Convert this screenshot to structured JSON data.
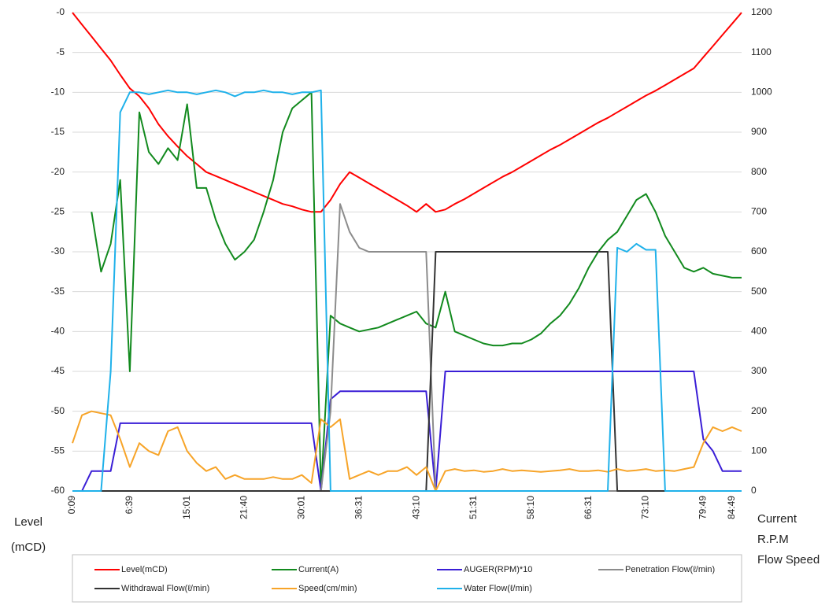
{
  "chart_data": {
    "type": "line",
    "y_label": [
      "Level",
      "(mCD)"
    ],
    "y2_label": [
      "Current",
      "R.P.M",
      "Flow Speed"
    ],
    "ylim": [
      -60,
      0
    ],
    "yticks": [
      {
        "value": 0,
        "label": "-0"
      },
      -5,
      -10,
      -15,
      -20,
      -25,
      -30,
      -35,
      -40,
      -45,
      -50,
      -55,
      -60
    ],
    "y2lim": [
      0,
      1200
    ],
    "y2ticks": [
      0,
      100,
      200,
      300,
      400,
      500,
      600,
      700,
      800,
      900,
      1000,
      1100,
      1200
    ],
    "grid": true,
    "legend": "bottom",
    "categories": [
      "0:09",
      null,
      null,
      null,
      null,
      null,
      "6:39",
      null,
      null,
      null,
      null,
      null,
      "15:01",
      null,
      null,
      null,
      null,
      null,
      "21:40",
      null,
      null,
      null,
      null,
      null,
      "30:01",
      null,
      null,
      null,
      null,
      null,
      "36:31",
      null,
      null,
      null,
      null,
      null,
      "43:10",
      null,
      null,
      null,
      null,
      null,
      "51:31",
      null,
      null,
      null,
      null,
      null,
      "58:10",
      null,
      null,
      null,
      null,
      null,
      "66:31",
      null,
      null,
      null,
      null,
      null,
      "73:10",
      null,
      null,
      null,
      null,
      null,
      "79:49",
      null,
      null,
      "84:49",
      null
    ],
    "series": [
      {
        "name": "Level(mCD)",
        "color": "#ff0000",
        "axis": "y",
        "values": [
          0,
          -1.5,
          -3,
          -4.5,
          -6,
          -7.8,
          -9.5,
          -10.5,
          -12,
          -14,
          -15.5,
          -16.8,
          -18,
          -19,
          -20,
          -20.5,
          -21,
          -21.5,
          -22,
          -22.5,
          -23,
          -23.5,
          -24,
          -24.3,
          -24.7,
          -25,
          -25,
          -23.5,
          -21.5,
          -20,
          -20.7,
          -21.4,
          -22.1,
          -22.8,
          -23.5,
          -24.2,
          -25,
          -24,
          -25,
          -24.7,
          -24,
          -23.4,
          -22.7,
          -22,
          -21.3,
          -20.6,
          -20,
          -19.3,
          -18.6,
          -17.9,
          -17.2,
          -16.6,
          -15.9,
          -15.2,
          -14.5,
          -13.8,
          -13.2,
          -12.5,
          -11.8,
          -11.1,
          -10.4,
          -9.8,
          -9.1,
          -8.4,
          -7.7,
          -7,
          -5.6,
          -4.2,
          -2.8,
          -1.4,
          0
        ]
      },
      {
        "name": "Current(A)",
        "color": "#128a1e",
        "axis": "y2",
        "values": [
          null,
          null,
          700,
          550,
          620,
          780,
          300,
          950,
          850,
          820,
          860,
          830,
          970,
          760,
          760,
          680,
          620,
          580,
          600,
          630,
          700,
          780,
          900,
          960,
          980,
          1000,
          0,
          440,
          420,
          410,
          400,
          405,
          410,
          420,
          430,
          440,
          450,
          420,
          410,
          500,
          400,
          390,
          380,
          370,
          365,
          365,
          370,
          370,
          380,
          395,
          420,
          440,
          470,
          510,
          560,
          600,
          630,
          650,
          690,
          730,
          745,
          700,
          640,
          600,
          560,
          550,
          560,
          545,
          540,
          535,
          535
        ]
      },
      {
        "name": "AUGER(RPM)*10",
        "color": "#3a1ed6",
        "axis": "y2",
        "values": [
          0,
          0,
          50,
          50,
          50,
          170,
          170,
          170,
          170,
          170,
          170,
          170,
          170,
          170,
          170,
          170,
          170,
          170,
          170,
          170,
          170,
          170,
          170,
          170,
          170,
          170,
          0,
          230,
          250,
          250,
          250,
          250,
          250,
          250,
          250,
          250,
          250,
          250,
          0,
          300,
          300,
          300,
          300,
          300,
          300,
          300,
          300,
          300,
          300,
          300,
          300,
          300,
          300,
          300,
          300,
          300,
          300,
          300,
          300,
          300,
          300,
          300,
          300,
          300,
          300,
          300,
          130,
          100,
          50,
          50,
          50
        ]
      },
      {
        "name": "Penetration Flow(ℓ/min)",
        "color": "#8c8c8c",
        "axis": "y2",
        "values": [
          0,
          0,
          0,
          0,
          0,
          0,
          0,
          0,
          0,
          0,
          0,
          0,
          0,
          0,
          0,
          0,
          0,
          0,
          0,
          0,
          0,
          0,
          0,
          0,
          0,
          0,
          0,
          200,
          720,
          650,
          610,
          600,
          600,
          600,
          600,
          600,
          600,
          600,
          0,
          0,
          0,
          0,
          0,
          0,
          0,
          0,
          0,
          0,
          0,
          0,
          0,
          0,
          0,
          0,
          0,
          0,
          0,
          0,
          0,
          0,
          0,
          0,
          0,
          0,
          0,
          0,
          0,
          0,
          0,
          0,
          0
        ]
      },
      {
        "name": "Withdrawal Flow(ℓ/min)",
        "color": "#333333",
        "axis": "y2",
        "values": [
          0,
          0,
          0,
          0,
          0,
          0,
          0,
          0,
          0,
          0,
          0,
          0,
          0,
          0,
          0,
          0,
          0,
          0,
          0,
          0,
          0,
          0,
          0,
          0,
          0,
          0,
          0,
          0,
          0,
          0,
          0,
          0,
          0,
          0,
          0,
          0,
          0,
          0,
          600,
          600,
          600,
          600,
          600,
          600,
          600,
          600,
          600,
          600,
          600,
          600,
          600,
          600,
          600,
          600,
          600,
          600,
          600,
          0,
          0,
          0,
          0,
          0,
          0,
          0,
          0,
          0,
          0,
          0,
          0,
          0,
          0
        ]
      },
      {
        "name": "Speed(cm/min)",
        "color": "#f7a428",
        "axis": "y2",
        "values": [
          120,
          190,
          200,
          195,
          190,
          130,
          60,
          120,
          100,
          90,
          150,
          160,
          100,
          70,
          50,
          60,
          30,
          40,
          30,
          30,
          30,
          35,
          30,
          30,
          40,
          20,
          180,
          160,
          180,
          30,
          40,
          50,
          40,
          50,
          50,
          60,
          40,
          60,
          0,
          50,
          55,
          50,
          52,
          48,
          50,
          55,
          50,
          52,
          50,
          48,
          50,
          52,
          55,
          50,
          50,
          52,
          48,
          55,
          50,
          52,
          55,
          50,
          52,
          50,
          55,
          60,
          120,
          160,
          150,
          160,
          150
        ]
      },
      {
        "name": "Water Flow(ℓ/min)",
        "color": "#1fb1ea",
        "axis": "y2",
        "values": [
          0,
          0,
          0,
          0,
          300,
          950,
          1000,
          1000,
          995,
          1000,
          1005,
          1000,
          1000,
          995,
          1000,
          1005,
          1000,
          990,
          1000,
          1000,
          1005,
          1000,
          1000,
          995,
          1000,
          1000,
          1005,
          0,
          0,
          0,
          0,
          0,
          0,
          0,
          0,
          0,
          0,
          0,
          0,
          0,
          0,
          0,
          0,
          0,
          0,
          0,
          0,
          0,
          0,
          0,
          0,
          0,
          0,
          0,
          0,
          0,
          0,
          610,
          600,
          620,
          605,
          605,
          0,
          0,
          0,
          0,
          0,
          0,
          0,
          0,
          0
        ]
      }
    ]
  }
}
